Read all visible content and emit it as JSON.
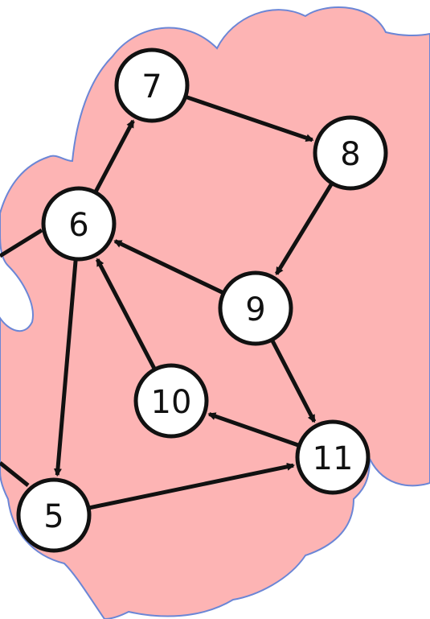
{
  "diagram": {
    "background_color": "#ffffff",
    "region_fill": "#fdb4b4",
    "region_outline": "#6b86d6",
    "node_fill": "#ffffff",
    "ink": "#111111",
    "nodes": [
      {
        "id": "7",
        "label": "7"
      },
      {
        "id": "8",
        "label": "8"
      },
      {
        "id": "6",
        "label": "6"
      },
      {
        "id": "9",
        "label": "9"
      },
      {
        "id": "10",
        "label": "10"
      },
      {
        "id": "11",
        "label": "11"
      },
      {
        "id": "5",
        "label": "5"
      }
    ],
    "edges": [
      {
        "from": "6",
        "to": "7"
      },
      {
        "from": "7",
        "to": "8"
      },
      {
        "from": "8",
        "to": "9"
      },
      {
        "from": "9",
        "to": "6"
      },
      {
        "from": "10",
        "to": "6"
      },
      {
        "from": "9",
        "to": "11"
      },
      {
        "from": "11",
        "to": "10"
      },
      {
        "from": "6",
        "to": "5"
      },
      {
        "from": "5",
        "to": "11"
      }
    ],
    "offscreen_edges": [
      {
        "to": "6",
        "direction": "left"
      },
      {
        "to": "5",
        "direction": "left"
      }
    ]
  }
}
